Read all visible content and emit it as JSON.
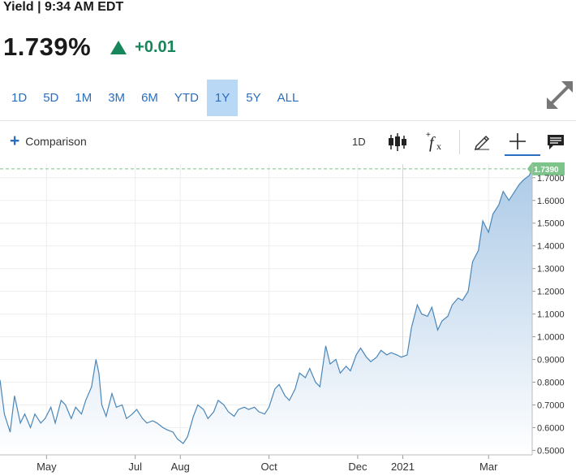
{
  "header": {
    "title": "Yield | 9:34 AM EDT",
    "price": "1.739%",
    "change": "+0.01",
    "change_color": "#17875b"
  },
  "ranges": [
    {
      "label": "1D",
      "active": false
    },
    {
      "label": "5D",
      "active": false
    },
    {
      "label": "1M",
      "active": false
    },
    {
      "label": "3M",
      "active": false
    },
    {
      "label": "6M",
      "active": false
    },
    {
      "label": "YTD",
      "active": false
    },
    {
      "label": "1Y",
      "active": true
    },
    {
      "label": "5Y",
      "active": false
    },
    {
      "label": "ALL",
      "active": false
    }
  ],
  "toolbar": {
    "comparison_label": "Comparison",
    "interval_label": "1D",
    "icons": [
      "candlestick-icon",
      "function-icon",
      "pencil-icon",
      "crosshair-icon",
      "comment-icon"
    ]
  },
  "chart_data": {
    "type": "area",
    "x_ticks": [
      "May",
      "Jul",
      "Aug",
      "Oct",
      "Dec",
      "2021",
      "Mar"
    ],
    "y_ticks": [
      "0.5000",
      "0.6000",
      "0.7000",
      "0.8000",
      "0.9000",
      "1.0000",
      "1.1000",
      "1.2000",
      "1.3000",
      "1.4000",
      "1.5000",
      "1.6000",
      "1.7000"
    ],
    "ylim": [
      0.48,
      1.76
    ],
    "last_value_label": "1.7390",
    "line_color": "#4a86b8",
    "fill_color": "#b9d3ea",
    "badge_color": "#7cc48a",
    "series": [
      {
        "dates": [
          "2020-03-30",
          "2020-04-02",
          "2020-04-06",
          "2020-04-09",
          "2020-04-13",
          "2020-04-16",
          "2020-04-20",
          "2020-04-23",
          "2020-04-27",
          "2020-04-30",
          "2020-05-04",
          "2020-05-07",
          "2020-05-11",
          "2020-05-14",
          "2020-05-18",
          "2020-05-21",
          "2020-05-25",
          "2020-05-28",
          "2020-06-01",
          "2020-06-04",
          "2020-06-06",
          "2020-06-08",
          "2020-06-11",
          "2020-06-15",
          "2020-06-18",
          "2020-06-22",
          "2020-06-25",
          "2020-06-29",
          "2020-07-02",
          "2020-07-06",
          "2020-07-09",
          "2020-07-13",
          "2020-07-16",
          "2020-07-20",
          "2020-07-23",
          "2020-07-27",
          "2020-07-30",
          "2020-08-03",
          "2020-08-06",
          "2020-08-10",
          "2020-08-13",
          "2020-08-17",
          "2020-08-20",
          "2020-08-24",
          "2020-08-27",
          "2020-08-31",
          "2020-09-03",
          "2020-09-07",
          "2020-09-10",
          "2020-09-14",
          "2020-09-17",
          "2020-09-21",
          "2020-09-24",
          "2020-09-28",
          "2020-10-01",
          "2020-10-05",
          "2020-10-08",
          "2020-10-12",
          "2020-10-15",
          "2020-10-19",
          "2020-10-22",
          "2020-10-26",
          "2020-10-29",
          "2020-11-02",
          "2020-11-05",
          "2020-11-09",
          "2020-11-12",
          "2020-11-16",
          "2020-11-19",
          "2020-11-23",
          "2020-11-26",
          "2020-11-30",
          "2020-12-03",
          "2020-12-07",
          "2020-12-10",
          "2020-12-14",
          "2020-12-17",
          "2020-12-21",
          "2020-12-24",
          "2020-12-28",
          "2020-12-31",
          "2021-01-04",
          "2021-01-07",
          "2021-01-11",
          "2021-01-14",
          "2021-01-18",
          "2021-01-21",
          "2021-01-25",
          "2021-01-28",
          "2021-02-01",
          "2021-02-04",
          "2021-02-08",
          "2021-02-11",
          "2021-02-15",
          "2021-02-18",
          "2021-02-22",
          "2021-02-25",
          "2021-03-01",
          "2021-03-04",
          "2021-03-08",
          "2021-03-11",
          "2021-03-15",
          "2021-03-18",
          "2021-03-22",
          "2021-03-25",
          "2021-03-29",
          "2021-03-31"
        ],
        "values": [
          0.81,
          0.66,
          0.58,
          0.74,
          0.62,
          0.66,
          0.6,
          0.66,
          0.62,
          0.64,
          0.69,
          0.62,
          0.72,
          0.7,
          0.64,
          0.69,
          0.66,
          0.72,
          0.78,
          0.9,
          0.84,
          0.7,
          0.65,
          0.75,
          0.69,
          0.7,
          0.64,
          0.66,
          0.68,
          0.64,
          0.62,
          0.63,
          0.62,
          0.6,
          0.59,
          0.58,
          0.55,
          0.53,
          0.56,
          0.65,
          0.7,
          0.68,
          0.64,
          0.67,
          0.72,
          0.7,
          0.67,
          0.65,
          0.68,
          0.69,
          0.68,
          0.69,
          0.67,
          0.66,
          0.69,
          0.77,
          0.79,
          0.74,
          0.72,
          0.77,
          0.84,
          0.82,
          0.86,
          0.8,
          0.78,
          0.96,
          0.88,
          0.9,
          0.84,
          0.87,
          0.85,
          0.92,
          0.95,
          0.91,
          0.89,
          0.91,
          0.94,
          0.92,
          0.93,
          0.92,
          0.91,
          0.92,
          1.04,
          1.14,
          1.1,
          1.09,
          1.13,
          1.03,
          1.07,
          1.09,
          1.14,
          1.17,
          1.16,
          1.2,
          1.33,
          1.38,
          1.51,
          1.46,
          1.54,
          1.58,
          1.64,
          1.6,
          1.63,
          1.67,
          1.69,
          1.71,
          1.739
        ]
      }
    ]
  }
}
